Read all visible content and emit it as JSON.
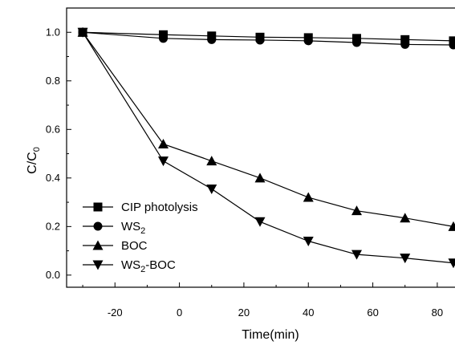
{
  "chart_data": {
    "type": "line",
    "xlabel": "Time(min)",
    "ylabel": "C/C",
    "ylabel_sub": "0",
    "xlim": [
      -35,
      85
    ],
    "ylim": [
      -0.05,
      1.1
    ],
    "x_ticks": [
      -20,
      0,
      20,
      40,
      60,
      80
    ],
    "x_tick_labels": [
      "-20",
      "0",
      "20",
      "40",
      "60",
      "80"
    ],
    "y_ticks": [
      0.0,
      0.2,
      0.4,
      0.6,
      0.8,
      1.0
    ],
    "y_tick_labels": [
      "0.0",
      "0.2",
      "0.4",
      "0.6",
      "0.8",
      "1.0"
    ],
    "grid": false,
    "legend_position": "bottom-left",
    "series": [
      {
        "name": "CIP photolysis",
        "name_sub": "",
        "name_suffix": "",
        "marker": "square",
        "x": [
          -30,
          -5,
          10,
          25,
          40,
          55,
          70,
          85
        ],
        "y": [
          1.0,
          0.99,
          0.985,
          0.98,
          0.978,
          0.975,
          0.97,
          0.965
        ]
      },
      {
        "name": "WS",
        "name_sub": "2",
        "name_suffix": "",
        "marker": "circle",
        "x": [
          -30,
          -5,
          10,
          25,
          40,
          55,
          70,
          85
        ],
        "y": [
          1.0,
          0.975,
          0.97,
          0.968,
          0.965,
          0.958,
          0.95,
          0.948
        ]
      },
      {
        "name": "BOC",
        "name_sub": "",
        "name_suffix": "",
        "marker": "triangle-up",
        "x": [
          -30,
          -5,
          10,
          25,
          40,
          55,
          70,
          85
        ],
        "y": [
          1.0,
          0.54,
          0.47,
          0.4,
          0.32,
          0.265,
          0.235,
          0.2
        ]
      },
      {
        "name": "WS",
        "name_sub": "2",
        "name_suffix": "-BOC",
        "marker": "triangle-down",
        "x": [
          -30,
          -5,
          10,
          25,
          40,
          55,
          70,
          85
        ],
        "y": [
          1.0,
          0.47,
          0.355,
          0.22,
          0.14,
          0.085,
          0.07,
          0.05
        ]
      }
    ]
  }
}
